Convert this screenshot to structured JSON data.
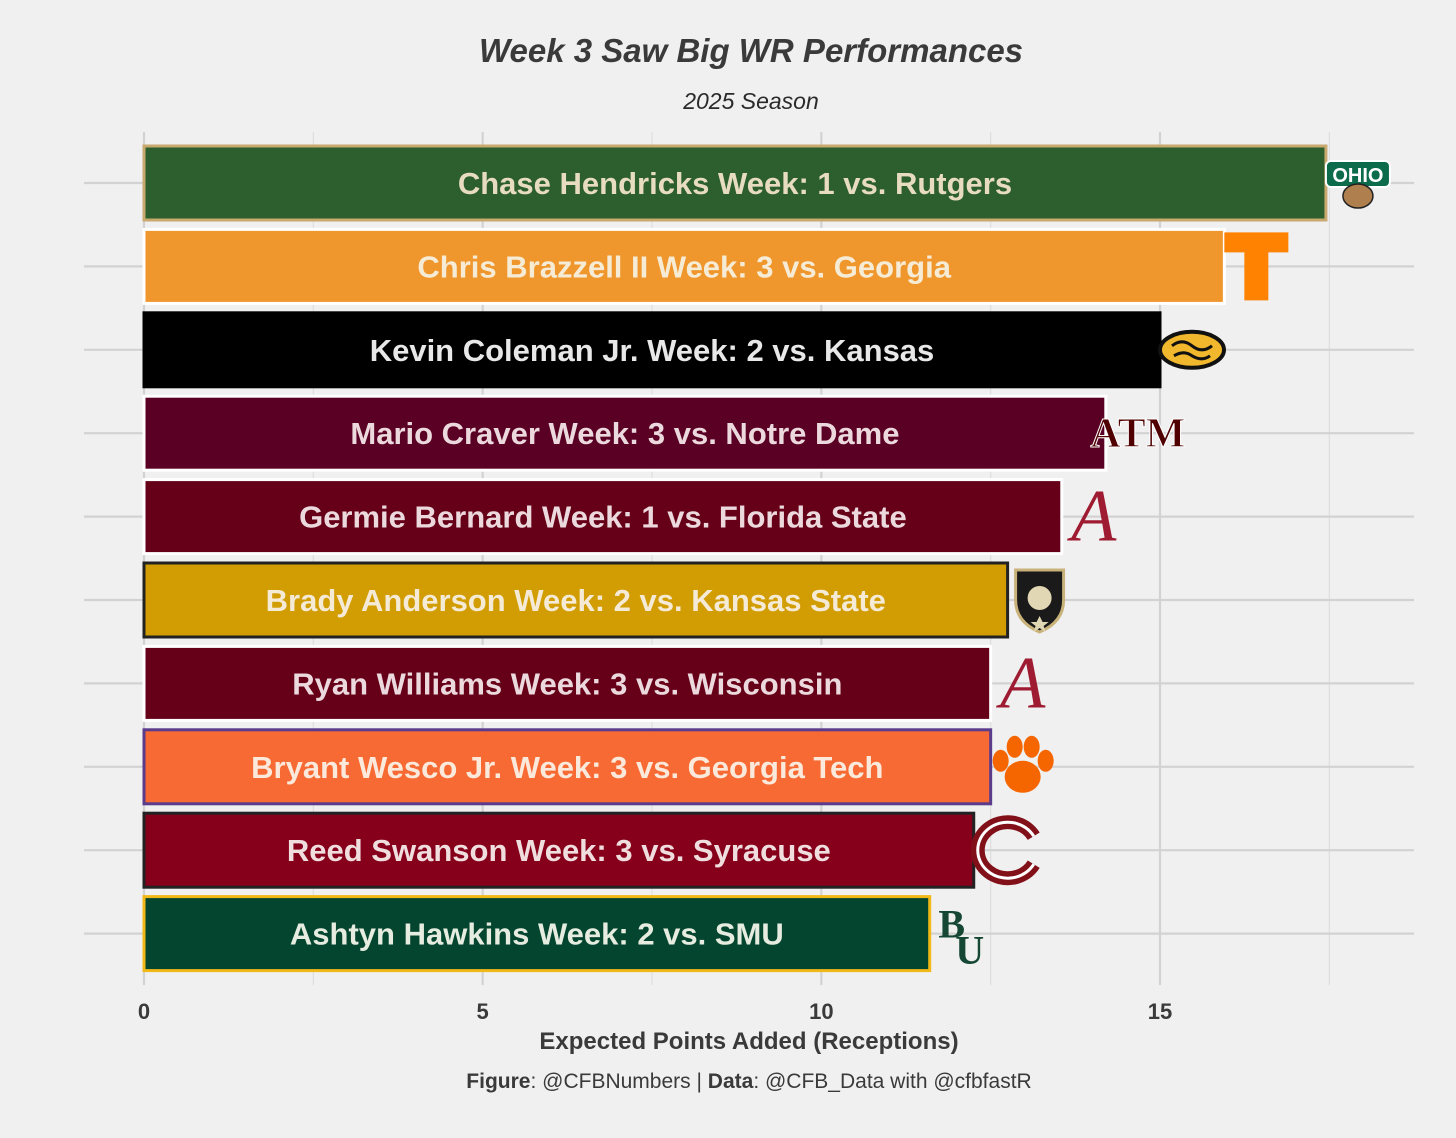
{
  "chart_data": {
    "type": "bar",
    "orientation": "horizontal",
    "title": "Week 3 Saw Big WR Performances",
    "subtitle": "2025 Season",
    "xlabel": "Expected Points Added (Receptions)",
    "ylabel": "",
    "xlim": [
      0,
      18.8
    ],
    "x_ticks": [
      0,
      5,
      10,
      15
    ],
    "grid": true,
    "legend": "none",
    "bars": [
      {
        "label": "Chase Hendricks Week: 1 vs. Rutgers",
        "value": 17.45,
        "team": "Ohio",
        "fill": "#2c5e2e",
        "outline": "#c9a96e",
        "text_color": "#e8dcc0",
        "logo": "ohio-bobcats-logo"
      },
      {
        "label": "Chris Brazzell II Week: 3 vs. Georgia",
        "value": 15.95,
        "team": "Tennessee",
        "fill": "#ef962c",
        "outline": "#ffffff",
        "text_color": "#f6ecd6",
        "logo": "tennessee-power-t-logo"
      },
      {
        "label": "Kevin Coleman Jr. Week: 2 vs. Kansas",
        "value": 15.0,
        "team": "Missouri",
        "fill": "#000000",
        "outline": "#000000",
        "text_color": "#e8e8e8",
        "logo": "missouri-tiger-logo"
      },
      {
        "label": "Mario Craver Week: 3 vs. Notre Dame",
        "value": 14.2,
        "team": "Texas A&M",
        "fill": "#5b0025",
        "outline": "#ffffff",
        "text_color": "#ecd9dd",
        "logo": "texas-am-logo"
      },
      {
        "label": "Germie Bernard Week: 1 vs. Florida State",
        "value": 13.55,
        "team": "Alabama",
        "fill": "#650018",
        "outline": "#ffffff",
        "text_color": "#ecd9dd",
        "logo": "alabama-a-logo"
      },
      {
        "label": "Brady Anderson Week: 2 vs. Kansas State",
        "value": 12.75,
        "team": "Army",
        "fill": "#d19d02",
        "outline": "#222222",
        "text_color": "#f4ead6",
        "logo": "army-knight-logo"
      },
      {
        "label": "Ryan Williams Week: 3 vs. Wisconsin",
        "value": 12.5,
        "team": "Alabama",
        "fill": "#650018",
        "outline": "#ffffff",
        "text_color": "#ecd9dd",
        "logo": "alabama-a-logo"
      },
      {
        "label": "Bryant Wesco Jr. Week: 3 vs. Georgia Tech",
        "value": 12.5,
        "team": "Clemson",
        "fill": "#f76a33",
        "outline": "#5b3b8c",
        "text_color": "#fbe9dc",
        "logo": "clemson-paw-logo"
      },
      {
        "label": "Reed Swanson Week: 3 vs. Syracuse",
        "value": 12.25,
        "team": "Colgate",
        "fill": "#86001c",
        "outline": "#222222",
        "text_color": "#f0dede",
        "logo": "colgate-c-logo"
      },
      {
        "label": "Ashtyn Hawkins Week: 2 vs. SMU",
        "value": 11.6,
        "team": "Baylor",
        "fill": "#04452f",
        "outline": "#f2b817",
        "text_color": "#e6ece0",
        "logo": "baylor-bu-logo"
      }
    ]
  },
  "caption": {
    "figure_label": "Figure",
    "figure_value": ": @CFBNumbers | ",
    "data_label": "Data",
    "data_value": ": @CFB_Data with @cfbfastR"
  }
}
